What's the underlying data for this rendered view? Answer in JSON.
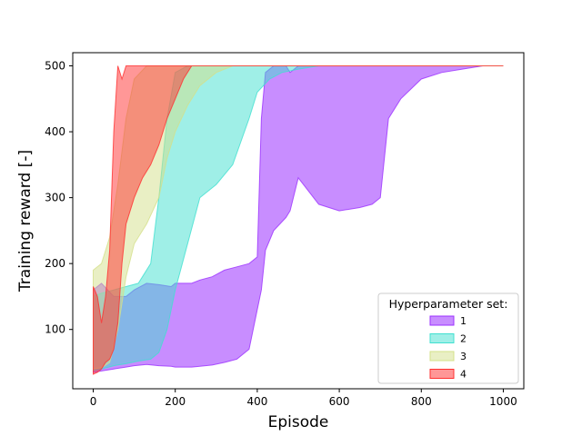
{
  "chart_data": {
    "type": "area",
    "title": "",
    "xlabel": "Episode",
    "ylabel": "Training reward [-]",
    "xlim": [
      -50,
      1050
    ],
    "ylim": [
      10,
      520
    ],
    "xticks": [
      0,
      200,
      400,
      600,
      800,
      1000
    ],
    "yticks": [
      100,
      200,
      300,
      400,
      500
    ],
    "grid": false,
    "legend": {
      "title": "Hyperparameter set:",
      "placement": "bottom-right"
    },
    "series": [
      {
        "name": "1",
        "color": "#9b30ff",
        "opacity": 0.55,
        "x": [
          0,
          20,
          50,
          80,
          100,
          130,
          160,
          190,
          200,
          240,
          260,
          290,
          320,
          350,
          380,
          400,
          410,
          420,
          440,
          470,
          480,
          500,
          550,
          600,
          650,
          680,
          700,
          720,
          750,
          800,
          850,
          900,
          950,
          1000
        ],
        "upper": [
          160,
          170,
          150,
          150,
          160,
          170,
          168,
          165,
          170,
          170,
          175,
          180,
          190,
          195,
          200,
          210,
          420,
          490,
          500,
          500,
          490,
          500,
          500,
          500,
          500,
          500,
          500,
          500,
          500,
          500,
          500,
          500,
          500,
          500
        ],
        "lower": [
          35,
          37,
          40,
          43,
          45,
          47,
          45,
          44,
          43,
          43,
          44,
          46,
          50,
          55,
          70,
          130,
          160,
          220,
          250,
          270,
          280,
          330,
          290,
          280,
          285,
          290,
          300,
          420,
          450,
          480,
          490,
          495,
          500,
          500
        ]
      },
      {
        "name": "2",
        "color": "#40e0d0",
        "opacity": 0.5,
        "x": [
          0,
          20,
          50,
          80,
          110,
          140,
          160,
          180,
          200,
          230,
          260,
          300,
          340,
          380,
          400,
          430,
          460,
          500,
          550,
          600,
          1000
        ],
        "upper": [
          150,
          155,
          160,
          165,
          170,
          200,
          300,
          420,
          490,
          500,
          500,
          500,
          500,
          500,
          500,
          500,
          500,
          500,
          500,
          500,
          500
        ],
        "lower": [
          38,
          40,
          45,
          48,
          52,
          55,
          65,
          100,
          160,
          230,
          300,
          320,
          350,
          420,
          460,
          480,
          490,
          495,
          500,
          500,
          500
        ]
      },
      {
        "name": "3",
        "color": "#d4e08a",
        "opacity": 0.5,
        "x": [
          0,
          20,
          40,
          60,
          80,
          100,
          130,
          160,
          180,
          200,
          230,
          260,
          300,
          340,
          400,
          1000
        ],
        "upper": [
          190,
          200,
          240,
          320,
          420,
          480,
          500,
          500,
          500,
          500,
          500,
          500,
          500,
          500,
          500,
          500
        ],
        "lower": [
          40,
          42,
          50,
          100,
          180,
          230,
          260,
          300,
          360,
          400,
          440,
          470,
          490,
          500,
          500,
          500
        ]
      },
      {
        "name": "4",
        "color": "#ff3030",
        "opacity": 0.5,
        "x": [
          0,
          10,
          20,
          30,
          40,
          50,
          60,
          70,
          80,
          100,
          120,
          140,
          160,
          180,
          200,
          220,
          240,
          1000
        ],
        "upper": [
          165,
          150,
          110,
          150,
          220,
          400,
          500,
          480,
          500,
          500,
          500,
          500,
          500,
          500,
          500,
          500,
          500,
          500
        ],
        "lower": [
          32,
          35,
          40,
          50,
          55,
          70,
          110,
          200,
          260,
          300,
          330,
          350,
          380,
          420,
          450,
          480,
          500,
          500
        ]
      }
    ]
  }
}
